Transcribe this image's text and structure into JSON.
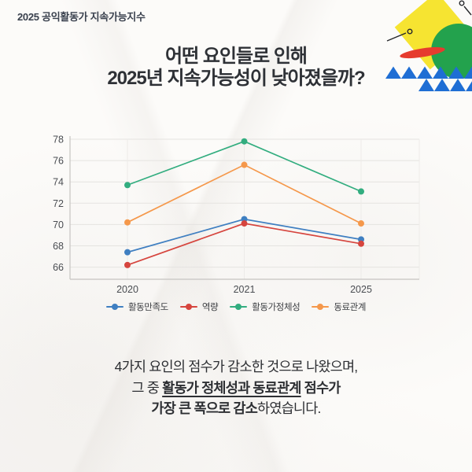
{
  "header": {
    "label": "2025 공익활동가 지속가능지수"
  },
  "title": {
    "line1": "어떤 요인들로 인해",
    "line2": "2025년 지속가능성이 낮아졌을까?"
  },
  "chart_data": {
    "type": "line",
    "categories": [
      "2020",
      "2021",
      "2025"
    ],
    "series": [
      {
        "key": "satisfaction",
        "name": "활동만족도",
        "color": "#3f7fc1",
        "values": [
          67.4,
          70.5,
          68.6
        ]
      },
      {
        "key": "competency",
        "name": "역량",
        "color": "#d6453e",
        "values": [
          66.2,
          70.1,
          68.2
        ]
      },
      {
        "key": "identity",
        "name": "활동가정체성",
        "color": "#32ad7f",
        "values": [
          73.7,
          77.8,
          73.1
        ]
      },
      {
        "key": "peer-relationship",
        "name": "동료관계",
        "color": "#f5984b",
        "values": [
          70.2,
          75.6,
          70.1
        ]
      }
    ],
    "ylim": [
      65,
      79
    ],
    "yticks": [
      66,
      68,
      70,
      72,
      74,
      76,
      78
    ],
    "grid": true,
    "legend_position": "bottom",
    "title": "",
    "xlabel": "",
    "ylabel": ""
  },
  "caption": {
    "line1": "4가지 요인의 점수가 감소한 것으로 나왔으며,",
    "line2_prefix": "그 중 ",
    "line2_underline": "활동가 정체성과 동료관계",
    "line2_bold_suffix": " 점수가",
    "line3_bold": "가장 큰 폭으로 감소",
    "line3_suffix": "하였습니다."
  },
  "decoration": {
    "colors": {
      "yellow_square": "#f6e431",
      "green_circle": "#23a24d",
      "red_ellipse": "#e63b2e",
      "blue_triangles": "#1f6ed4",
      "pin_stroke": "#26282b"
    }
  }
}
